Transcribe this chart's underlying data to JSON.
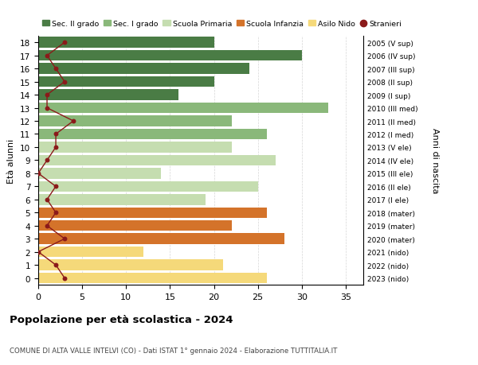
{
  "ages": [
    18,
    17,
    16,
    15,
    14,
    13,
    12,
    11,
    10,
    9,
    8,
    7,
    6,
    5,
    4,
    3,
    2,
    1,
    0
  ],
  "anni_nascita": [
    "2005 (V sup)",
    "2006 (IV sup)",
    "2007 (III sup)",
    "2008 (II sup)",
    "2009 (I sup)",
    "2010 (III med)",
    "2011 (II med)",
    "2012 (I med)",
    "2013 (V ele)",
    "2014 (IV ele)",
    "2015 (III ele)",
    "2016 (II ele)",
    "2017 (I ele)",
    "2018 (mater)",
    "2019 (mater)",
    "2020 (mater)",
    "2021 (nido)",
    "2022 (nido)",
    "2023 (nido)"
  ],
  "bar_values": [
    20,
    30,
    24,
    20,
    16,
    33,
    22,
    26,
    22,
    27,
    14,
    25,
    19,
    26,
    22,
    28,
    12,
    21,
    26
  ],
  "bar_colors": [
    "#4a7c45",
    "#4a7c45",
    "#4a7c45",
    "#4a7c45",
    "#4a7c45",
    "#8ab87a",
    "#8ab87a",
    "#8ab87a",
    "#c5ddb0",
    "#c5ddb0",
    "#c5ddb0",
    "#c5ddb0",
    "#c5ddb0",
    "#d4732a",
    "#d4732a",
    "#d4732a",
    "#f5d97a",
    "#f5d97a",
    "#f5d97a"
  ],
  "stranieri_values": [
    3,
    1,
    2,
    3,
    1,
    1,
    4,
    2,
    2,
    1,
    0,
    2,
    1,
    2,
    1,
    3,
    0,
    2,
    3
  ],
  "stranieri_color": "#8b1a1a",
  "legend_labels": [
    "Sec. II grado",
    "Sec. I grado",
    "Scuola Primaria",
    "Scuola Infanzia",
    "Asilo Nido",
    "Stranieri"
  ],
  "legend_colors": [
    "#4a7c45",
    "#8ab87a",
    "#c5ddb0",
    "#d4732a",
    "#f5d97a",
    "#8b1a1a"
  ],
  "ylabel": "Età alunni",
  "ylabel2": "Anni di nascita",
  "title": "Popolazione per età scolastica - 2024",
  "subtitle": "COMUNE DI ALTA VALLE INTELVI (CO) - Dati ISTAT 1° gennaio 2024 - Elaborazione TUTTITALIA.IT",
  "xlim": [
    0,
    37
  ],
  "ylim": [
    -0.5,
    18.5
  ],
  "xticks": [
    0,
    5,
    10,
    15,
    20,
    25,
    30,
    35
  ],
  "bg_color": "#ffffff",
  "grid_color": "#cccccc"
}
